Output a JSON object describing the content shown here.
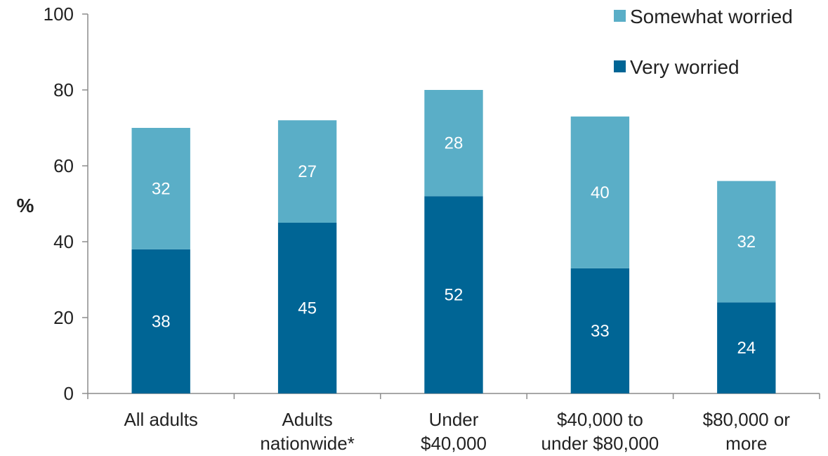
{
  "chart_data": {
    "type": "bar",
    "stacked": true,
    "categories": [
      [
        "All adults"
      ],
      [
        "Adults",
        "nationwide*"
      ],
      [
        "Under",
        "$40,000"
      ],
      [
        "$40,000 to",
        "under $80,000"
      ],
      [
        "$80,000 or",
        "more"
      ]
    ],
    "series": [
      {
        "name": "Very worried",
        "values": [
          38,
          45,
          52,
          33,
          24
        ],
        "color": "#006595"
      },
      {
        "name": "Somewhat worried",
        "values": [
          32,
          27,
          28,
          40,
          32
        ],
        "color": "#5aaec7"
      }
    ],
    "legend_order": [
      "Somewhat worried",
      "Very worried"
    ],
    "legend_position": "top-right",
    "ylabel": "%",
    "xlabel": "",
    "ylim": [
      0,
      100
    ],
    "yticks": [
      0,
      20,
      40,
      60,
      80,
      100
    ],
    "grid": false
  }
}
